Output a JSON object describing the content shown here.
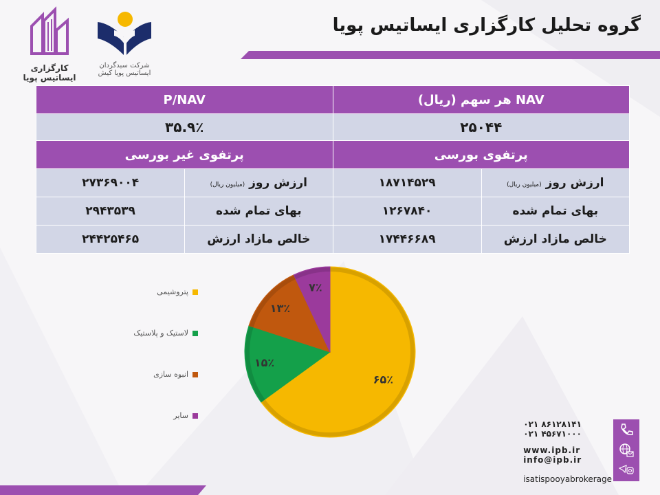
{
  "header": {
    "title": "گروه تحلیل کارگزاری ایساتیس پویا"
  },
  "logos": {
    "brokerage": {
      "line1": "کارگزاری",
      "line2": "ایساتیس پویا"
    },
    "fund_manager": {
      "line1": "شرکت سبدگردان",
      "line2": "ایساتیس پویا کیش"
    }
  },
  "table": {
    "nav_header": "NAV هر سهم (ریال)",
    "pnav_header": "P/NAV",
    "nav_value": "۲۵۰۴۴",
    "pnav_value": "۳۵.۹٪",
    "listed_header": "پرتفوی بورسی",
    "unlisted_header": "پرتفوی غیر بورسی",
    "market_value_label": "ارزش روز",
    "market_value_unit": "(میلیون ریال)",
    "cost_label": "بهای تمام شده",
    "surplus_label": "خالص مازاد ارزش",
    "listed": {
      "market_value": "۱۸۷۱۴۵۲۹",
      "cost": "۱۲۶۷۸۴۰",
      "surplus": "۱۷۴۴۶۶۸۹"
    },
    "unlisted": {
      "market_value": "۲۷۳۶۹۰۰۴",
      "cost": "۲۹۴۳۵۳۹",
      "surplus": "۲۴۴۲۵۴۶۵"
    }
  },
  "chart_data": {
    "type": "pie",
    "title": "",
    "slices": [
      {
        "name": "پتروشیمی",
        "value": 65,
        "label": "۶۵٪",
        "color": "#f6b800"
      },
      {
        "name": "لاستیک و پلاستیک",
        "value": 15,
        "label": "۱۵٪",
        "color": "#14a04a"
      },
      {
        "name": "انبوه سازی",
        "value": 13,
        "label": "۱۳٪",
        "color": "#c0580e"
      },
      {
        "name": "سایر",
        "value": 7,
        "label": "۷٪",
        "color": "#9b3a9c"
      }
    ],
    "legend_position": "left"
  },
  "contact": {
    "phone1": "۰۲۱ ۸۶۱۲۸۱۴۱",
    "phone2": "۰۲۱ ۴۵۶۷۱۰۰۰",
    "website": "www.ipb.ir",
    "email": "info@ipb.ir",
    "instagram": "isatispooyabrokerage"
  },
  "colors": {
    "purple": "#9c4fb0",
    "light_cell": "#d2d6e6",
    "gold": "#f6b800",
    "navy": "#1c2d6b"
  }
}
